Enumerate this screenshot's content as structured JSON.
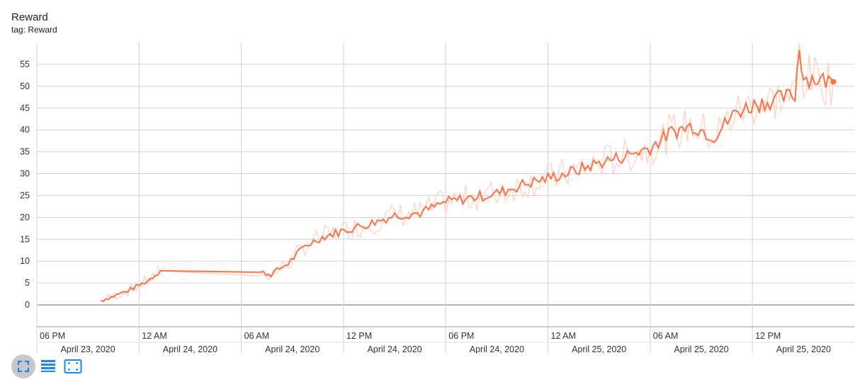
{
  "card": {
    "title": "Reward",
    "tag": "tag: Reward"
  },
  "toolbar": [
    {
      "name": "fullscreen-button",
      "icon": "fullscreen-icon",
      "active": true
    },
    {
      "name": "toggle-log-scale-button",
      "icon": "list-icon",
      "active": false
    },
    {
      "name": "fit-domain-button",
      "icon": "fit-screen-icon",
      "active": false
    }
  ],
  "colors": {
    "series": "#ff7043",
    "series_raw": "#ffccbc",
    "grid": "#d4d4d4",
    "axis": "#999999"
  },
  "chart_data": {
    "type": "line",
    "title": "Reward",
    "xlabel": "",
    "ylabel": "",
    "ylim": [
      -5,
      60
    ],
    "yticks": [
      0,
      5,
      10,
      15,
      20,
      25,
      30,
      35,
      40,
      45,
      50,
      55
    ],
    "x_axis": {
      "ticks": [
        {
          "time": "06 PM",
          "date": "April 23, 2020"
        },
        {
          "time": "12 AM",
          "date": "April 24, 2020"
        },
        {
          "time": "06 AM",
          "date": "April 24, 2020"
        },
        {
          "time": "12 PM",
          "date": "April 24, 2020"
        },
        {
          "time": "06 PM",
          "date": "April 24, 2020"
        },
        {
          "time": "12 AM",
          "date": "April 25, 2020"
        },
        {
          "time": "06 AM",
          "date": "April 25, 2020"
        },
        {
          "time": "12 PM",
          "date": "April 25, 2020"
        }
      ]
    },
    "grid": true,
    "legend": "none",
    "series": [
      {
        "x": [
          "2020-04-23 21:45",
          "2020-04-23 22:30",
          "2020-04-23 23:30",
          "2020-04-24 00:30",
          "2020-04-24 01:15",
          "2020-04-24 07:00",
          "2020-04-24 07:45",
          "2020-04-24 08:45",
          "2020-04-24 09:45",
          "2020-04-24 10:45",
          "2020-04-24 12:00",
          "2020-04-24 13:30",
          "2020-04-24 15:00",
          "2020-04-24 16:30",
          "2020-04-24 18:00",
          "2020-04-24 19:30",
          "2020-04-24 21:00",
          "2020-04-24 22:30",
          "2020-04-25 00:00",
          "2020-04-25 01:30",
          "2020-04-25 03:00",
          "2020-04-25 04:30",
          "2020-04-25 06:00",
          "2020-04-25 07:15",
          "2020-04-25 08:30",
          "2020-04-25 09:45",
          "2020-04-25 11:00",
          "2020-04-25 12:15",
          "2020-04-25 13:30",
          "2020-04-25 14:30",
          "2020-04-25 14:45",
          "2020-04-25 15:00",
          "2020-04-25 16:00",
          "2020-04-25 16:45"
        ],
        "y": [
          1.0,
          2.0,
          3.5,
          5.5,
          7.8,
          7.5,
          7.0,
          9.5,
          13.5,
          15.5,
          17.0,
          18.5,
          20.5,
          21.0,
          23.5,
          24.5,
          25.5,
          27.5,
          29.0,
          30.5,
          32.5,
          34.0,
          36.0,
          39.5,
          41.0,
          38.5,
          44.0,
          46.0,
          47.0,
          48.0,
          59.0,
          52.0,
          51.5,
          51.0
        ]
      }
    ]
  }
}
